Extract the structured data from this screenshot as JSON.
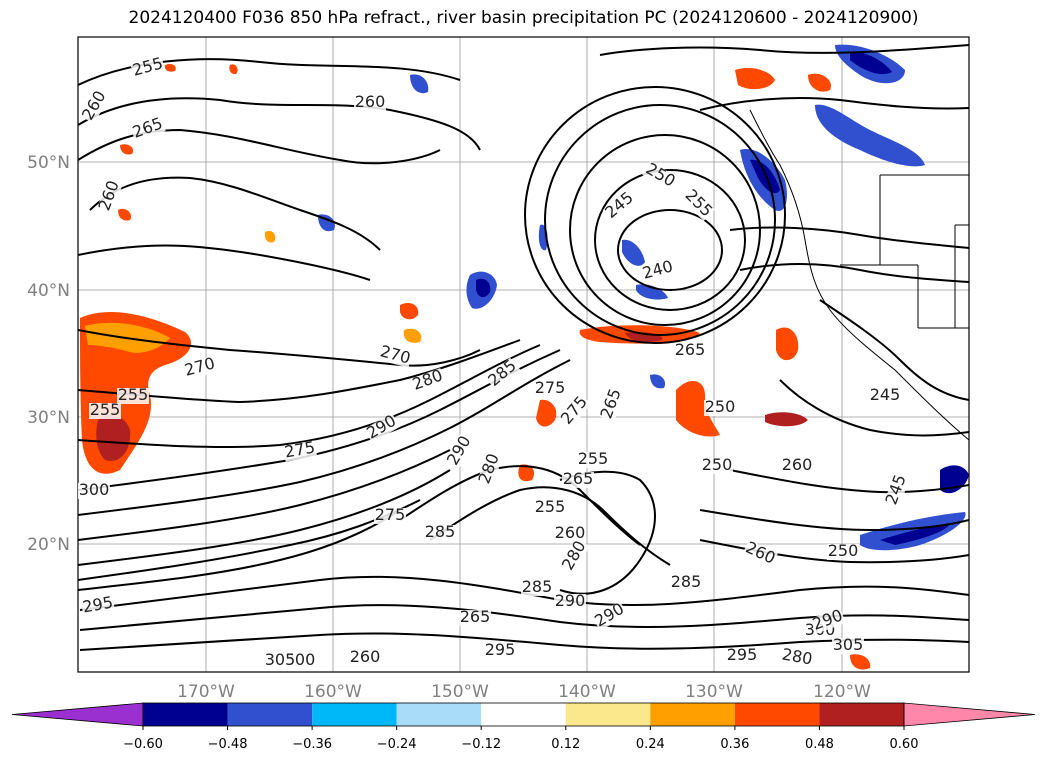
{
  "title": "2024120400 F036 850 hPa refract., river basin precipitation PC (2024120600 - 2024120900)",
  "map": {
    "lat_labels": [
      "50°N",
      "40°N",
      "30°N",
      "20°N"
    ],
    "lon_labels": [
      "170°W",
      "160°W",
      "150°W",
      "140°W",
      "130°W",
      "120°W"
    ],
    "contour_labels": [
      "255",
      "260",
      "265",
      "260",
      "260",
      "250",
      "255",
      "245",
      "240",
      "270",
      "280",
      "285",
      "275",
      "270",
      "275",
      "265",
      "250",
      "290",
      "275",
      "290",
      "280",
      "255",
      "265",
      "285",
      "275",
      "255",
      "260",
      "280",
      "250",
      "245",
      "260",
      "250",
      "245",
      "285",
      "290",
      "295",
      "300",
      "305",
      "300",
      "305",
      "260",
      "265",
      "290",
      "295",
      "280",
      "285",
      "290",
      "300",
      "295",
      "255",
      "255",
      "260",
      "265"
    ]
  },
  "colorbar": {
    "colors": [
      "#9b30d0",
      "#000090",
      "#3050d0",
      "#00b8f8",
      "#a8dcf8",
      "#ffffff",
      "#fce88c",
      "#ffa000",
      "#ff4800",
      "#b02020",
      "#ff88aa"
    ],
    "ticks": [
      "−0.60",
      "−0.48",
      "−0.36",
      "−0.24",
      "−0.12",
      "0.12",
      "0.24",
      "0.36",
      "0.48",
      "0.60"
    ]
  }
}
